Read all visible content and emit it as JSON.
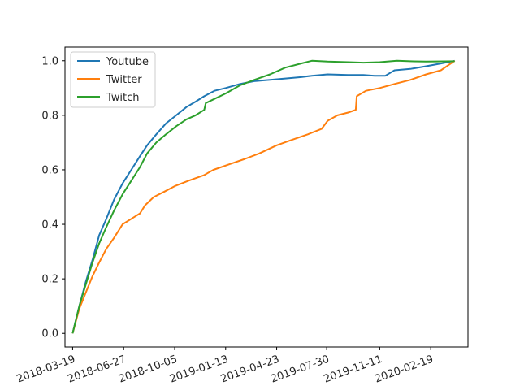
{
  "chart_data": {
    "type": "line",
    "title": "",
    "xlabel": "",
    "ylabel": "",
    "x_axis_type": "date",
    "xlim": [
      "2018-03-04",
      "2020-05-02"
    ],
    "ylim": [
      -0.05,
      1.05
    ],
    "x_ticks": [
      "2018-03-19",
      "2018-06-27",
      "2018-10-05",
      "2019-01-13",
      "2019-04-23",
      "2019-07-30",
      "2019-11-11",
      "2020-02-19"
    ],
    "y_ticks": [
      0.0,
      0.2,
      0.4,
      0.6,
      0.8,
      1.0
    ],
    "y_tick_labels": [
      "0.0",
      "0.2",
      "0.4",
      "0.6",
      "0.8",
      "1.0"
    ],
    "grid": false,
    "legend_position": "top-left",
    "series": [
      {
        "name": "Youtube",
        "color": "#1f77b4",
        "points": [
          [
            "2018-03-19",
            0.0
          ],
          [
            "2018-04-01",
            0.1
          ],
          [
            "2018-04-14",
            0.19
          ],
          [
            "2018-04-27",
            0.27
          ],
          [
            "2018-05-10",
            0.36
          ],
          [
            "2018-05-24",
            0.42
          ],
          [
            "2018-06-08",
            0.49
          ],
          [
            "2018-06-25",
            0.55
          ],
          [
            "2018-07-12",
            0.6
          ],
          [
            "2018-07-29",
            0.65
          ],
          [
            "2018-08-12",
            0.69
          ],
          [
            "2018-08-30",
            0.73
          ],
          [
            "2018-09-18",
            0.77
          ],
          [
            "2018-10-08",
            0.8
          ],
          [
            "2018-10-28",
            0.83
          ],
          [
            "2018-11-15",
            0.85
          ],
          [
            "2018-12-02",
            0.87
          ],
          [
            "2018-12-22",
            0.89
          ],
          [
            "2019-01-13",
            0.9
          ],
          [
            "2019-02-10",
            0.915
          ],
          [
            "2019-03-10",
            0.925
          ],
          [
            "2019-04-10",
            0.93
          ],
          [
            "2019-05-10",
            0.935
          ],
          [
            "2019-06-10",
            0.94
          ],
          [
            "2019-07-01",
            0.945
          ],
          [
            "2019-08-01",
            0.95
          ],
          [
            "2019-09-10",
            0.948
          ],
          [
            "2019-10-10",
            0.948
          ],
          [
            "2019-11-01",
            0.945
          ],
          [
            "2019-11-22",
            0.945
          ],
          [
            "2019-12-10",
            0.965
          ],
          [
            "2020-01-10",
            0.97
          ],
          [
            "2020-02-10",
            0.98
          ],
          [
            "2020-03-10",
            0.99
          ],
          [
            "2020-04-06",
            1.0
          ]
        ]
      },
      {
        "name": "Twitter",
        "color": "#ff7f0e",
        "points": [
          [
            "2018-03-19",
            0.0
          ],
          [
            "2018-04-01",
            0.09
          ],
          [
            "2018-04-14",
            0.15
          ],
          [
            "2018-04-27",
            0.21
          ],
          [
            "2018-05-10",
            0.26
          ],
          [
            "2018-05-24",
            0.31
          ],
          [
            "2018-06-08",
            0.35
          ],
          [
            "2018-06-25",
            0.4
          ],
          [
            "2018-07-12",
            0.42
          ],
          [
            "2018-07-29",
            0.44
          ],
          [
            "2018-08-08",
            0.47
          ],
          [
            "2018-08-25",
            0.5
          ],
          [
            "2018-09-15",
            0.52
          ],
          [
            "2018-10-05",
            0.54
          ],
          [
            "2018-11-01",
            0.56
          ],
          [
            "2018-12-01",
            0.58
          ],
          [
            "2018-12-20",
            0.6
          ],
          [
            "2019-01-20",
            0.62
          ],
          [
            "2019-02-20",
            0.64
          ],
          [
            "2019-03-20",
            0.66
          ],
          [
            "2019-04-23",
            0.69
          ],
          [
            "2019-05-23",
            0.71
          ],
          [
            "2019-06-23",
            0.73
          ],
          [
            "2019-07-20",
            0.75
          ],
          [
            "2019-08-01",
            0.78
          ],
          [
            "2019-08-20",
            0.8
          ],
          [
            "2019-09-10",
            0.81
          ],
          [
            "2019-09-25",
            0.82
          ],
          [
            "2019-09-27",
            0.87
          ],
          [
            "2019-10-15",
            0.89
          ],
          [
            "2019-11-11",
            0.9
          ],
          [
            "2019-12-10",
            0.915
          ],
          [
            "2020-01-10",
            0.93
          ],
          [
            "2020-02-10",
            0.95
          ],
          [
            "2020-03-10",
            0.965
          ],
          [
            "2020-04-06",
            1.0
          ]
        ]
      },
      {
        "name": "Twitch",
        "color": "#2ca02c",
        "points": [
          [
            "2018-03-19",
            0.0
          ],
          [
            "2018-04-01",
            0.1
          ],
          [
            "2018-04-14",
            0.18
          ],
          [
            "2018-04-27",
            0.26
          ],
          [
            "2018-05-10",
            0.33
          ],
          [
            "2018-05-24",
            0.39
          ],
          [
            "2018-06-08",
            0.45
          ],
          [
            "2018-06-25",
            0.51
          ],
          [
            "2018-07-12",
            0.56
          ],
          [
            "2018-07-29",
            0.61
          ],
          [
            "2018-08-12",
            0.66
          ],
          [
            "2018-08-30",
            0.7
          ],
          [
            "2018-09-18",
            0.73
          ],
          [
            "2018-10-08",
            0.76
          ],
          [
            "2018-10-28",
            0.785
          ],
          [
            "2018-11-15",
            0.8
          ],
          [
            "2018-12-02",
            0.82
          ],
          [
            "2018-12-05",
            0.845
          ],
          [
            "2018-12-22",
            0.86
          ],
          [
            "2019-01-13",
            0.88
          ],
          [
            "2019-02-10",
            0.91
          ],
          [
            "2019-03-10",
            0.93
          ],
          [
            "2019-04-10",
            0.95
          ],
          [
            "2019-05-10",
            0.975
          ],
          [
            "2019-06-10",
            0.99
          ],
          [
            "2019-07-01",
            1.0
          ],
          [
            "2019-08-01",
            0.997
          ],
          [
            "2019-09-10",
            0.995
          ],
          [
            "2019-10-10",
            0.993
          ],
          [
            "2019-11-11",
            0.995
          ],
          [
            "2019-12-15",
            1.0
          ],
          [
            "2020-01-10",
            0.998
          ],
          [
            "2020-02-10",
            0.997
          ],
          [
            "2020-04-06",
            0.998
          ]
        ]
      }
    ]
  }
}
